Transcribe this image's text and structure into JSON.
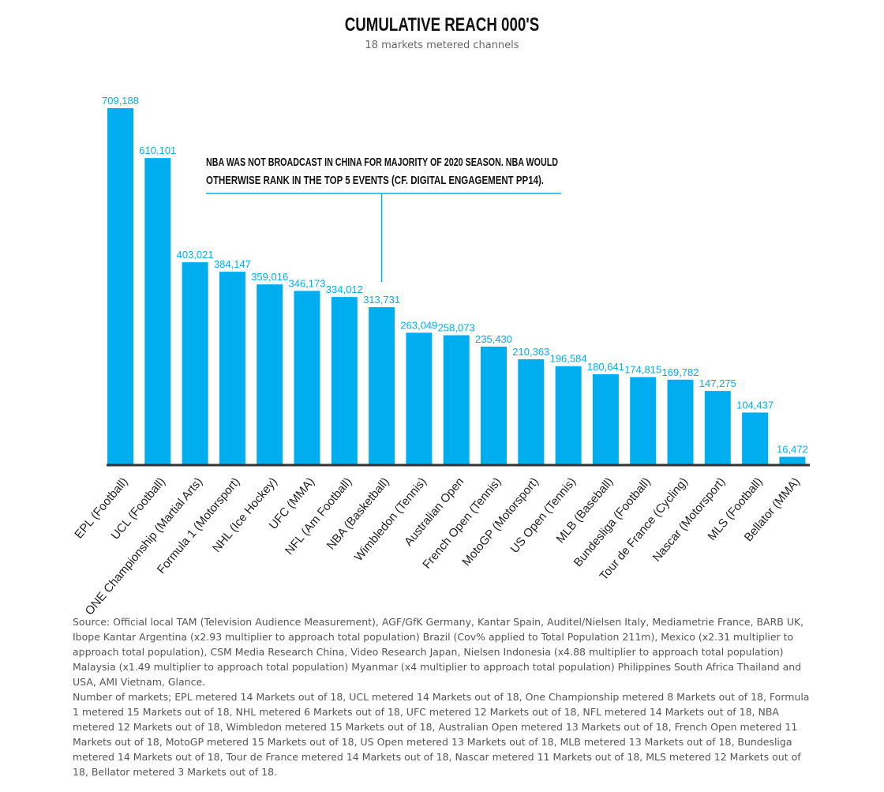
{
  "chart_data": {
    "type": "bar",
    "title": "CUMULATIVE REACH 000'S",
    "subtitle": "18 markets metered channels",
    "categories": [
      "EPL (Football)",
      "UCL (Football)",
      "ONE Championship (Martial Arts)",
      "Formula 1 (Motorsport)",
      "NHL (Ice Hockey)",
      "UFC (MMA)",
      "NFL (Am Football)",
      "NBA (Basketball)",
      "Wimbledon (Tennis)",
      "Australian Open",
      "French Open (Tennis)",
      "MotoGP (Motorsport)",
      "US Open (Tennis)",
      "MLB (Baseball)",
      "Bundesliga (Football)",
      "Tour de France (Cycling)",
      "Nascar (Motorsport)",
      "MLS (Football)",
      "Bellator (MMA)"
    ],
    "values": [
      709188,
      610101,
      403021,
      384147,
      359016,
      346173,
      334012,
      313731,
      263049,
      258073,
      235430,
      210363,
      196584,
      180641,
      174815,
      169782,
      147275,
      104437,
      16472
    ],
    "value_labels": [
      "709,188",
      "610,101",
      "403,021",
      "384,147",
      "359,016",
      "346,173",
      "334,012",
      "313,731",
      "263,049",
      "258,073",
      "235,430",
      "210,363",
      "196,584",
      "180,641",
      "174,815",
      "169,782",
      "147,275",
      "104,437",
      "16,472"
    ],
    "ylim": [
      0,
      709188
    ],
    "bar_color": "#00aeef",
    "annotation": {
      "lines": [
        "NBA WAS NOT BROADCAST IN CHINA FOR MAJORITY OF 2020 SEASON. NBA WOULD",
        "OTHERWISE RANK IN THE TOP 5 EVENTS (CF. DIGITAL ENGAGEMENT PP14)."
      ],
      "target_category": "NBA (Basketball)"
    }
  },
  "source": {
    "paragraph1": "Source: Official local TAM (Television Audience Measurement), AGF/GfK Germany, Kantar Spain, Auditel/Nielsen Italy, Mediametrie France, BARB UK, Ibope Kantar Argentina (x2.93 multiplier to approach total population) Brazil (Cov% applied to Total Population 211m), Mexico (x2.31 multiplier to approach total population), CSM Media Research China, Video Research Japan, Nielsen Indonesia (x4.88 multiplier to approach total population) Malaysia (x1.49 multiplier to approach total population) Myanmar (x4 multiplier to approach total population) Philippines South Africa Thailand and USA, AMI Vietnam, Glance.",
    "paragraph2": "Number of markets; EPL metered 14 Markets out of 18, UCL metered 14 Markets out of 18, One Championship metered 8 Markets out of 18, Formula 1 metered 15 Markets out of 18, NHL metered 6 Markets out of 18, UFC metered 12 Markets out of 18, NFL metered 14 Markets out of 18, NBA metered 12 Markets out of 18, Wimbledon metered 15 Markets out of 18, Australian Open metered 13 Markets out of 18, French Open metered 11 Markets out of 18, MotoGP metered 15 Markets out of 18, US Open metered 13 Markets out of 18, MLB metered 13 Markets out of 18, Bundesliga metered 14 Markets out of 18, Tour de France metered 14 Markets out of 18, Nascar metered 11 Markets out of 18, MLS metered 12 Markets out of 18, Bellator metered 3 Markets out of 18."
  }
}
